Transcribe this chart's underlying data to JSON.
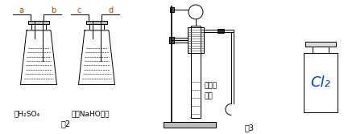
{
  "bg_color": "#ffffff",
  "fig2_label": "图2",
  "fig3_label": "图3",
  "bottle1_label": "浓H₂SO₄",
  "bottle2_label": "饱和NaHO溶液",
  "tube_label1": "稀硫酸",
  "tube_label2": "锌粒",
  "cl2_label": "Cl₂",
  "letter_color": "#cc4400",
  "line_color": "#000000",
  "cl2_color": "#0044cc",
  "liquid_lines": 8
}
